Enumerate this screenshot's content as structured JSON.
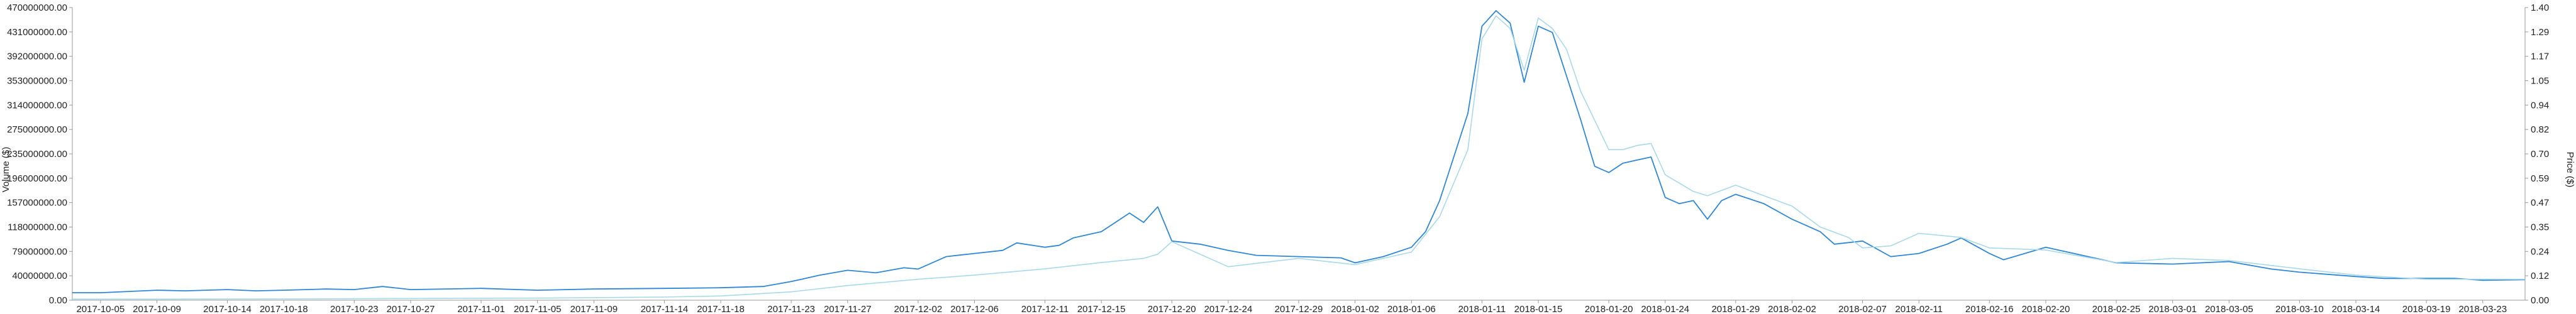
{
  "chart_data": {
    "type": "line",
    "title": "",
    "xlabel": "",
    "ylabel_left": "Volume ($)",
    "ylabel_right": "Price ($)",
    "grid": false,
    "x_tick_labels": [
      "2017-10-05",
      "2017-10-09",
      "2017-10-14",
      "2017-10-18",
      "2017-10-23",
      "2017-10-27",
      "2017-11-01",
      "2017-11-05",
      "2017-11-09",
      "2017-11-14",
      "2017-11-18",
      "2017-11-23",
      "2017-11-27",
      "2017-12-02",
      "2017-12-06",
      "2017-12-11",
      "2017-12-15",
      "2017-12-20",
      "2017-12-24",
      "2017-12-29",
      "2018-01-02",
      "2018-01-06",
      "2018-01-11",
      "2018-01-15",
      "2018-01-20",
      "2018-01-24",
      "2018-01-29",
      "2018-02-02",
      "2018-02-07",
      "2018-02-11",
      "2018-02-16",
      "2018-02-20",
      "2018-02-25",
      "2018-03-01",
      "2018-03-05",
      "2018-03-10",
      "2018-03-14",
      "2018-03-19",
      "2018-03-23"
    ],
    "y_left_tick_labels": [
      "0.00",
      "40000000.00",
      "79000000.00",
      "118000000.00",
      "157000000.00",
      "196000000.00",
      "235000000.00",
      "275000000.00",
      "314000000.00",
      "353000000.00",
      "392000000.00",
      "431000000.00",
      "470000000.00"
    ],
    "y_right_tick_labels": [
      "0.00",
      "0.12",
      "0.24",
      "0.35",
      "0.47",
      "0.59",
      "0.70",
      "0.82",
      "0.94",
      "1.05",
      "1.17",
      "1.29",
      "1.40"
    ],
    "y_left_range": [
      0,
      470000000
    ],
    "y_right_range": [
      0,
      1.4
    ],
    "series": [
      {
        "axis": "left",
        "color": "#2e86d6",
        "x": [
          "2017-10-03",
          "2017-10-05",
          "2017-10-09",
          "2017-10-11",
          "2017-10-14",
          "2017-10-16",
          "2017-10-18",
          "2017-10-21",
          "2017-10-23",
          "2017-10-25",
          "2017-10-27",
          "2017-11-01",
          "2017-11-05",
          "2017-11-09",
          "2017-11-14",
          "2017-11-18",
          "2017-11-21",
          "2017-11-23",
          "2017-11-25",
          "2017-11-27",
          "2017-11-29",
          "2017-12-01",
          "2017-12-02",
          "2017-12-04",
          "2017-12-06",
          "2017-12-08",
          "2017-12-09",
          "2017-12-11",
          "2017-12-12",
          "2017-12-13",
          "2017-12-15",
          "2017-12-16",
          "2017-12-17",
          "2017-12-18",
          "2017-12-19",
          "2017-12-20",
          "2017-12-22",
          "2017-12-24",
          "2017-12-26",
          "2017-12-29",
          "2018-01-01",
          "2018-01-02",
          "2018-01-04",
          "2018-01-06",
          "2018-01-07",
          "2018-01-08",
          "2018-01-09",
          "2018-01-10",
          "2018-01-11",
          "2018-01-12",
          "2018-01-13",
          "2018-01-14",
          "2018-01-15",
          "2018-01-16",
          "2018-01-17",
          "2018-01-18",
          "2018-01-19",
          "2018-01-20",
          "2018-01-21",
          "2018-01-22",
          "2018-01-23",
          "2018-01-24",
          "2018-01-25",
          "2018-01-26",
          "2018-01-27",
          "2018-01-28",
          "2018-01-29",
          "2018-01-31",
          "2018-02-02",
          "2018-02-04",
          "2018-02-05",
          "2018-02-07",
          "2018-02-09",
          "2018-02-11",
          "2018-02-13",
          "2018-02-14",
          "2018-02-16",
          "2018-02-17",
          "2018-02-20",
          "2018-02-23",
          "2018-02-25",
          "2018-03-01",
          "2018-03-05",
          "2018-03-08",
          "2018-03-10",
          "2018-03-14",
          "2018-03-16",
          "2018-03-19",
          "2018-03-21",
          "2018-03-23",
          "2018-03-26"
        ],
        "y": [
          12000000,
          12000000,
          16000000,
          15000000,
          17000000,
          15000000,
          16000000,
          18000000,
          17000000,
          22000000,
          17000000,
          19000000,
          16000000,
          18000000,
          19000000,
          20000000,
          22000000,
          30000000,
          40000000,
          48000000,
          44000000,
          52000000,
          50000000,
          70000000,
          75000000,
          80000000,
          92000000,
          85000000,
          88000000,
          100000000,
          110000000,
          125000000,
          140000000,
          125000000,
          150000000,
          95000000,
          90000000,
          80000000,
          72000000,
          70000000,
          68000000,
          60000000,
          70000000,
          85000000,
          110000000,
          160000000,
          230000000,
          300000000,
          440000000,
          465000000,
          445000000,
          350000000,
          440000000,
          430000000,
          360000000,
          290000000,
          215000000,
          205000000,
          220000000,
          225000000,
          230000000,
          165000000,
          155000000,
          160000000,
          130000000,
          160000000,
          170000000,
          155000000,
          130000000,
          110000000,
          90000000,
          95000000,
          70000000,
          75000000,
          90000000,
          100000000,
          75000000,
          65000000,
          85000000,
          70000000,
          60000000,
          58000000,
          62000000,
          50000000,
          45000000,
          38000000,
          35000000,
          35000000,
          35000000,
          32000000,
          33000000
        ]
      },
      {
        "axis": "right",
        "color": "#a8d8ea",
        "x": [
          "2017-10-03",
          "2017-10-09",
          "2017-10-18",
          "2017-10-27",
          "2017-11-05",
          "2017-11-14",
          "2017-11-18",
          "2017-11-23",
          "2017-11-27",
          "2017-12-02",
          "2017-12-06",
          "2017-12-11",
          "2017-12-15",
          "2017-12-18",
          "2017-12-19",
          "2017-12-20",
          "2017-12-24",
          "2017-12-29",
          "2018-01-02",
          "2018-01-06",
          "2018-01-08",
          "2018-01-10",
          "2018-01-11",
          "2018-01-12",
          "2018-01-13",
          "2018-01-14",
          "2018-01-15",
          "2018-01-16",
          "2018-01-17",
          "2018-01-18",
          "2018-01-20",
          "2018-01-21",
          "2018-01-22",
          "2018-01-23",
          "2018-01-24",
          "2018-01-25",
          "2018-01-26",
          "2018-01-27",
          "2018-01-29",
          "2018-01-31",
          "2018-02-02",
          "2018-02-04",
          "2018-02-06",
          "2018-02-07",
          "2018-02-09",
          "2018-02-11",
          "2018-02-14",
          "2018-02-16",
          "2018-02-20",
          "2018-02-25",
          "2018-03-01",
          "2018-03-05",
          "2018-03-10",
          "2018-03-14",
          "2018-03-19",
          "2018-03-26"
        ],
        "y": [
          0.005,
          0.005,
          0.006,
          0.008,
          0.01,
          0.015,
          0.02,
          0.04,
          0.07,
          0.1,
          0.12,
          0.15,
          0.18,
          0.2,
          0.22,
          0.28,
          0.16,
          0.2,
          0.17,
          0.23,
          0.4,
          0.72,
          1.25,
          1.36,
          1.3,
          1.1,
          1.35,
          1.3,
          1.2,
          1.0,
          0.72,
          0.72,
          0.74,
          0.75,
          0.6,
          0.56,
          0.52,
          0.5,
          0.55,
          0.5,
          0.45,
          0.35,
          0.3,
          0.25,
          0.26,
          0.32,
          0.3,
          0.25,
          0.24,
          0.18,
          0.2,
          0.19,
          0.15,
          0.12,
          0.1,
          0.1
        ]
      }
    ]
  }
}
